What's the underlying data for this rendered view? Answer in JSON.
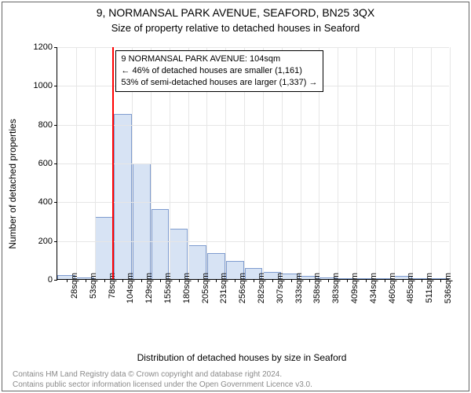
{
  "title": "9, NORMANSAL PARK AVENUE, SEAFORD, BN25 3QX",
  "subtitle": "Size of property relative to detached houses in Seaford",
  "chart": {
    "type": "histogram",
    "xlabel": "Distribution of detached houses by size in Seaford",
    "ylabel": "Number of detached properties",
    "ylim": [
      0,
      1200
    ],
    "ytick_step": 200,
    "yticks": [
      0,
      200,
      400,
      600,
      800,
      1000,
      1200
    ],
    "xticks": [
      "28sqm",
      "53sqm",
      "78sqm",
      "104sqm",
      "129sqm",
      "155sqm",
      "180sqm",
      "205sqm",
      "231sqm",
      "256sqm",
      "282sqm",
      "307sqm",
      "333sqm",
      "358sqm",
      "383sqm",
      "409sqm",
      "434sqm",
      "460sqm",
      "485sqm",
      "511sqm",
      "536sqm"
    ],
    "values": [
      20,
      7,
      320,
      850,
      595,
      360,
      260,
      175,
      135,
      95,
      58,
      38,
      28,
      15,
      8,
      5,
      3,
      2,
      15,
      2,
      2
    ],
    "bar_fill": "#d7e3f4",
    "bar_stroke": "#7f9ccf",
    "grid_color": "#e6e6e6",
    "background_color": "#ffffff",
    "axis_color": "#000000",
    "bar_width_ratio": 0.96,
    "reference_line": {
      "index": 3,
      "color": "#ff0000",
      "width": 2
    },
    "label_fontsize": 12,
    "tick_fontsize": 11
  },
  "annotation": {
    "lines": [
      "9 NORMANSAL PARK AVENUE: 104sqm",
      "← 46% of detached houses are smaller (1,161)",
      "53% of semi-detached houses are larger (1,337) →"
    ]
  },
  "footer": {
    "line1": "Contains HM Land Registry data © Crown copyright and database right 2024.",
    "line2": "Contains public sector information licensed under the Open Government Licence v3.0."
  }
}
